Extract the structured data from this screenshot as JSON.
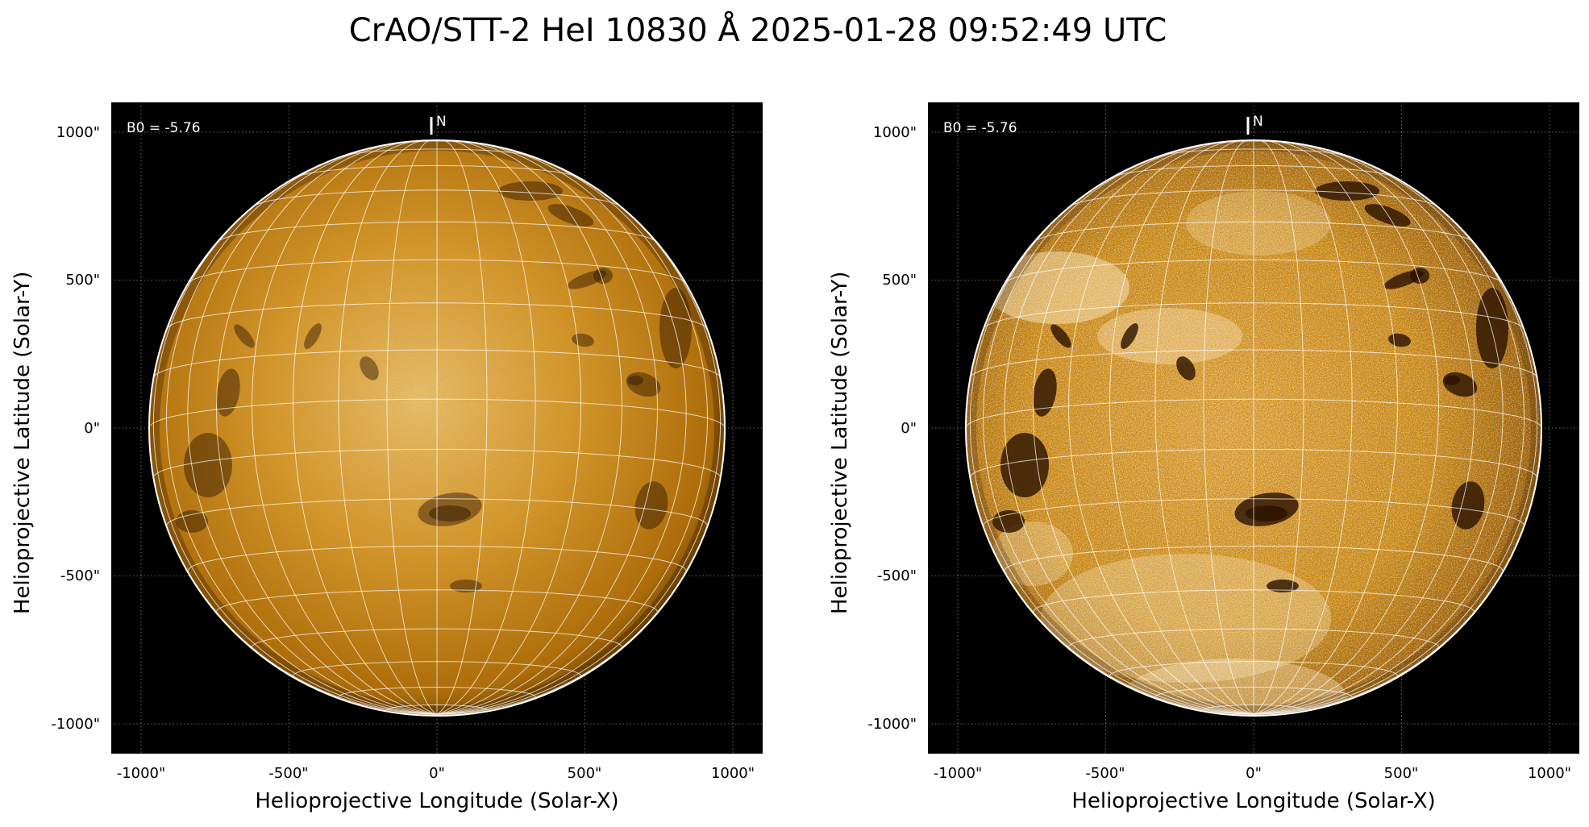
{
  "title": "CrAO/STT-2 HeI 10830 Å 2025-01-28 09:52:49 UTC",
  "colors": {
    "disk_dark": "#5a3000",
    "disk_mid": "#c07a10",
    "disk_bright": "#f2c271",
    "background": "#000000",
    "grid": "#ffffff"
  },
  "panels": [
    {
      "name": "left",
      "contrast": "normal",
      "annotation": "B0 = -5.76",
      "north_label": "N",
      "xlabel": "Helioprojective Longitude (Solar-X)",
      "ylabel": "Helioprojective Latitude (Solar-Y)",
      "xticks": [
        "-1000\"",
        "-500\"",
        "0\"",
        "500\"",
        "1000\""
      ],
      "yticks": [
        "1000\"",
        "500\"",
        "0\"",
        "-500\"",
        "-1000\""
      ]
    },
    {
      "name": "right",
      "contrast": "enhanced",
      "annotation": "B0 = -5.76",
      "north_label": "N",
      "xlabel": "Helioprojective Longitude (Solar-X)",
      "ylabel": "Helioprojective Latitude (Solar-Y)",
      "xticks": [
        "-1000\"",
        "-500\"",
        "0\"",
        "500\"",
        "1000\""
      ],
      "yticks": [
        "1000\"",
        "500\"",
        "0\"",
        "-500\"",
        "-1000\""
      ]
    }
  ]
}
